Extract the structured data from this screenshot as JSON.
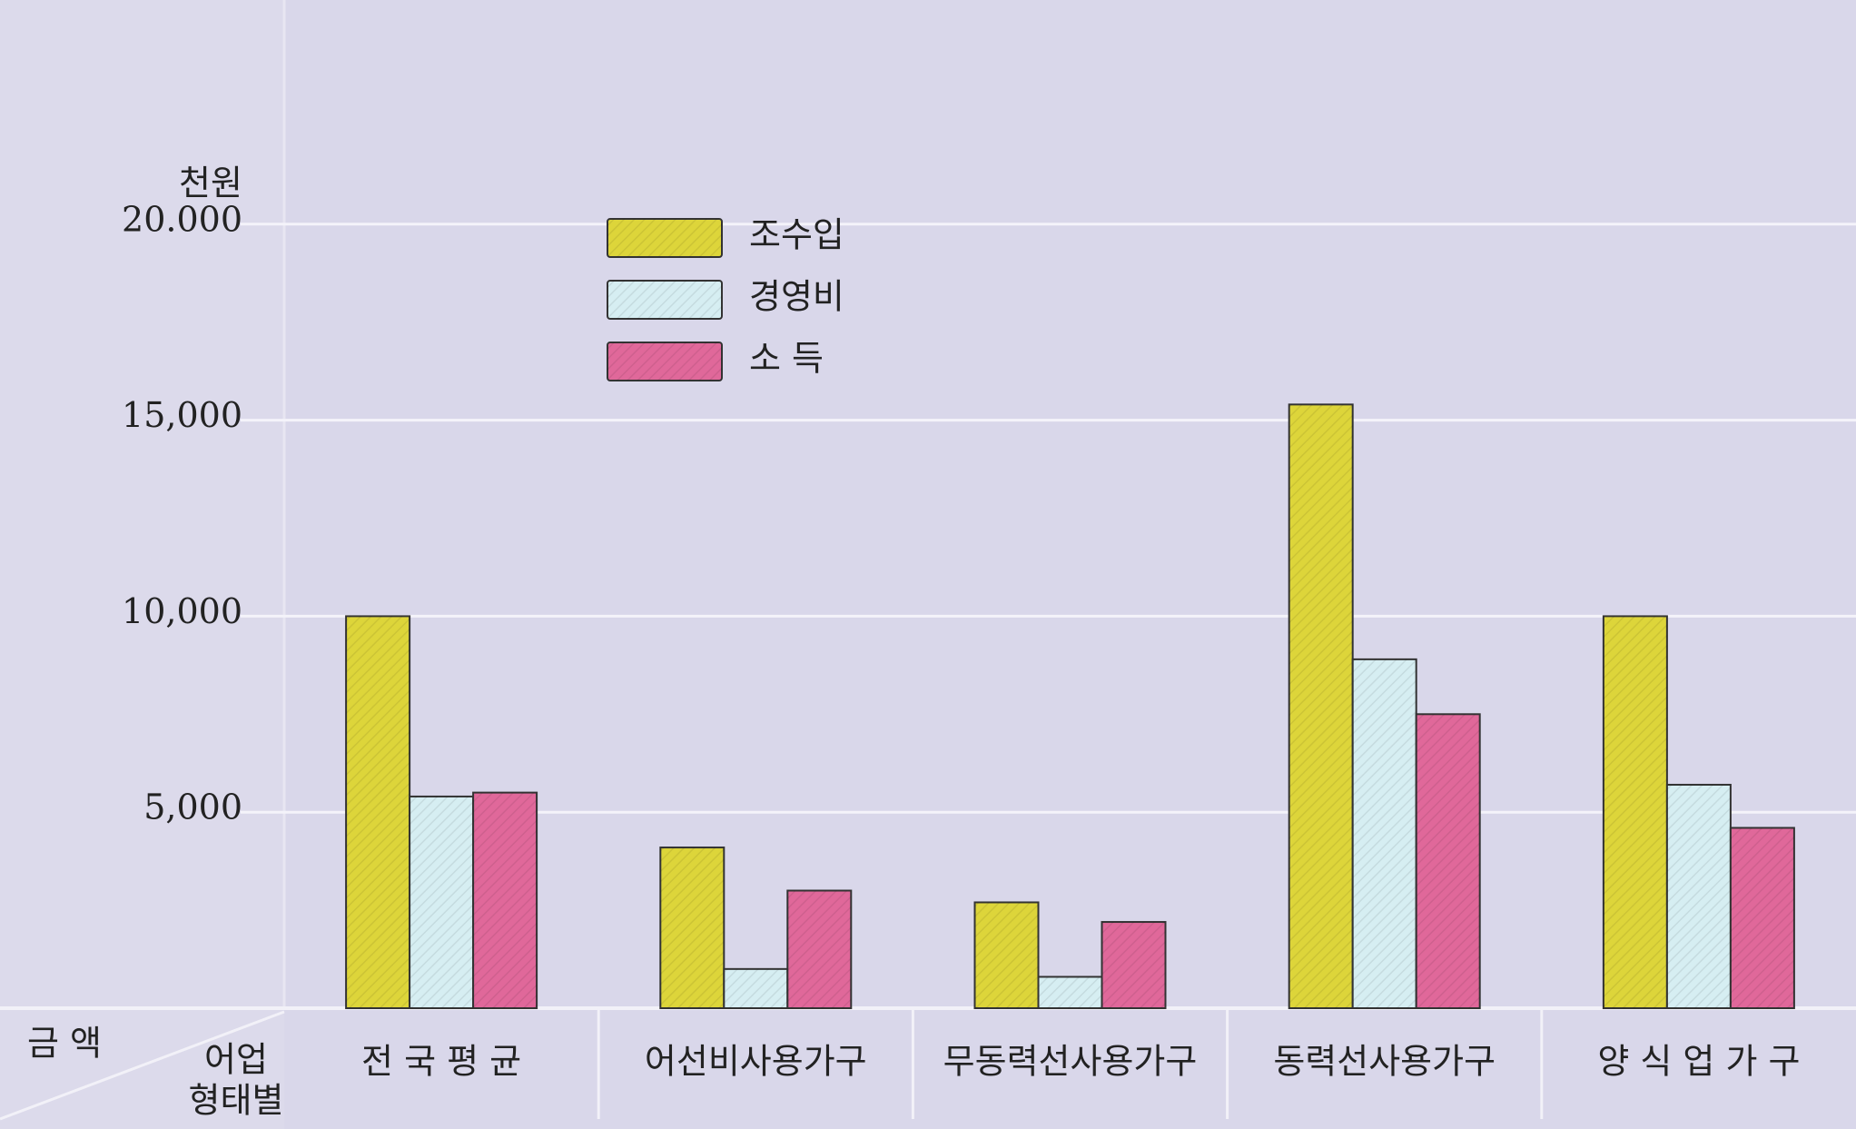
{
  "chart_data": {
    "type": "bar",
    "y_unit": "천원",
    "y_label": "금 액",
    "x_label": [
      "어업",
      "형태별"
    ],
    "categories": [
      "전 국 평 균",
      "어선비사용가구",
      "무동력선사용가구",
      "동력선사용가구",
      "양 식 업 가 구"
    ],
    "series": [
      {
        "name": "조수입",
        "color": "#ddd53a",
        "values": [
          10000,
          4100,
          2700,
          15400,
          10000
        ]
      },
      {
        "name": "경영비",
        "color": "#d6eef2",
        "values": [
          5400,
          1000,
          800,
          8900,
          5700
        ]
      },
      {
        "name": "소 득",
        "color": "#e0689a",
        "values": [
          5500,
          3000,
          2200,
          7500,
          4600
        ]
      }
    ],
    "ylim": [
      0,
      25000
    ],
    "yticks": [
      {
        "value": 5000,
        "label": "5,000"
      },
      {
        "value": 10000,
        "label": "10,000"
      },
      {
        "value": 15000,
        "label": "15,000"
      },
      {
        "value": 20000,
        "label": "20.000"
      }
    ],
    "grid": true
  }
}
